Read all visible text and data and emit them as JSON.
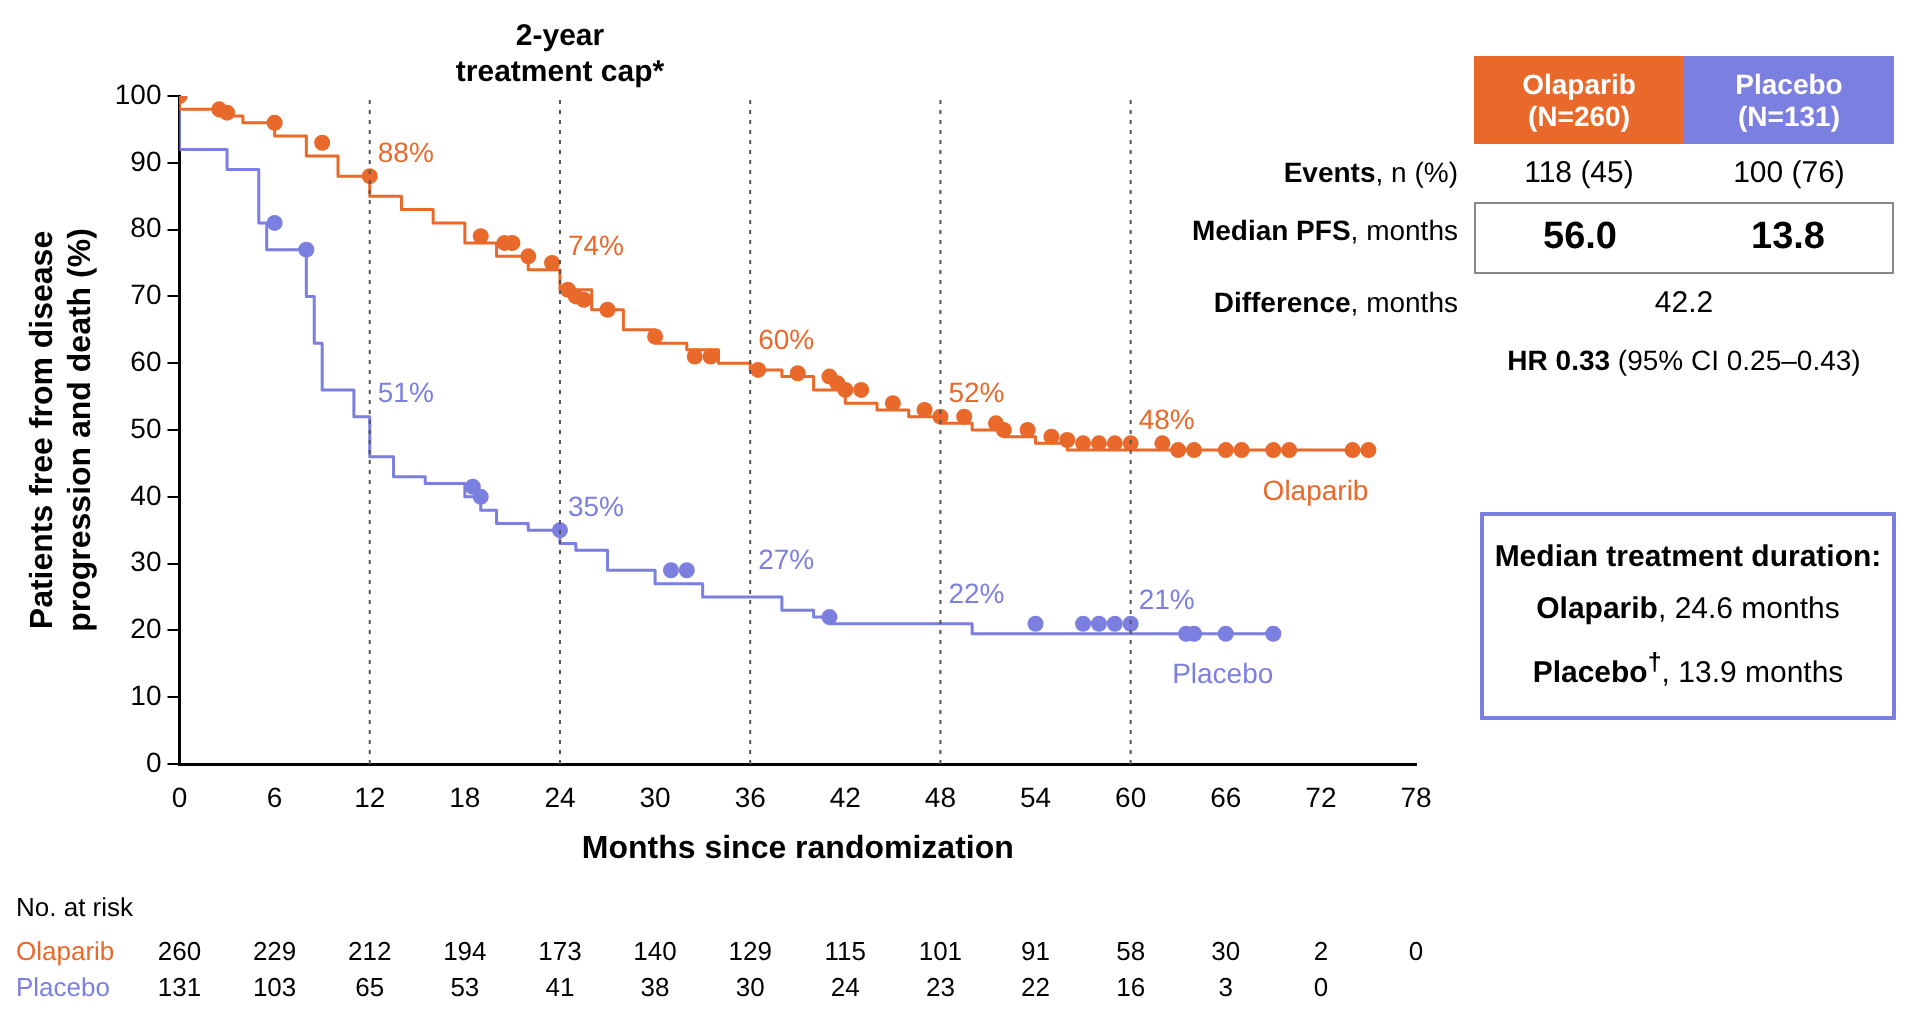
{
  "chart_data": {
    "type": "step",
    "xlabel": "Months since randomization",
    "ylabel": "Patients free from disease progression and death (%)",
    "xlim": [
      0,
      78
    ],
    "xticks": [
      0,
      6,
      12,
      18,
      24,
      30,
      36,
      42,
      48,
      54,
      60,
      66,
      72,
      78
    ],
    "ylim": [
      0,
      100
    ],
    "yticks": [
      0,
      10,
      20,
      30,
      40,
      50,
      60,
      70,
      80,
      90,
      100
    ],
    "grid": false,
    "legend": false,
    "series": [
      {
        "name": "Olaparib",
        "marker": "none",
        "color": "#e8692a",
        "x": [
          0,
          2.5,
          4,
          6,
          8,
          10,
          12,
          14,
          16,
          18,
          20,
          22,
          24,
          26,
          28,
          30,
          32,
          34,
          36,
          38,
          40,
          42,
          44,
          46,
          48,
          50,
          52,
          54,
          56,
          62,
          75
        ],
        "values": [
          100,
          98,
          97,
          96,
          94,
          91,
          88,
          85,
          83,
          81,
          78,
          76,
          74,
          71,
          68,
          65,
          63,
          62,
          60,
          59,
          58,
          56,
          54,
          53,
          52,
          51,
          50,
          49,
          48,
          47,
          47
        ]
      },
      {
        "name": "Placebo",
        "marker": "none",
        "color": "#7b7fe0",
        "x": [
          0,
          3,
          5,
          5.5,
          8,
          8.5,
          9,
          11,
          12,
          13.5,
          15.5,
          18,
          19,
          20,
          22,
          24,
          25,
          27,
          30,
          33,
          38,
          40,
          41,
          50,
          61,
          69
        ],
        "values": [
          100,
          92,
          89,
          81,
          77,
          70,
          63,
          56,
          52,
          46,
          43,
          42,
          40,
          38,
          36,
          35,
          33,
          32,
          29,
          27,
          25,
          23,
          22,
          21,
          19.5,
          19.5
        ]
      },
      {
        "type": "scatter",
        "marker": "circle",
        "color": "#e8692a",
        "x": [
          0,
          2.5,
          3,
          6,
          9,
          12,
          19,
          20.5,
          21,
          22,
          23.5,
          24.5,
          25,
          25.5,
          27,
          30,
          32.5,
          33.5,
          36.5,
          39,
          41,
          41.5,
          42,
          43,
          45,
          47,
          48,
          49.5,
          51.5,
          52,
          53.5,
          55,
          56,
          57,
          58,
          59,
          60,
          62,
          63,
          64,
          66,
          67,
          69,
          70,
          74,
          75
        ],
        "values": [
          100,
          98,
          97.5,
          96,
          93,
          88,
          79,
          78,
          78,
          76,
          75,
          71,
          70,
          69.5,
          68,
          64,
          61,
          61,
          59,
          58.5,
          58,
          57,
          56,
          56,
          54,
          53,
          52,
          52,
          51,
          50,
          50,
          49,
          48.5,
          48,
          48,
          48,
          48,
          48,
          47,
          47,
          47,
          47,
          47,
          47,
          47,
          47
        ]
      },
      {
        "type": "scatter",
        "marker": "circle",
        "color": "#7b7fe0",
        "x": [
          6,
          8,
          18.5,
          19,
          24,
          31,
          32,
          41,
          54,
          57,
          58,
          59,
          60,
          63.5,
          64,
          66,
          69
        ],
        "values": [
          81,
          77,
          41.5,
          40,
          35,
          29,
          29,
          22,
          21,
          21,
          21,
          21,
          21,
          19.5,
          19.5,
          19.5,
          19.5
        ]
      }
    ],
    "ref_lines": [
      {
        "axis": "x",
        "value": 12,
        "line_style": "dotted"
      },
      {
        "axis": "x",
        "value": 24,
        "line_style": "dotted",
        "label": "2-year treatment cap*"
      },
      {
        "axis": "x",
        "value": 36,
        "line_style": "dotted"
      },
      {
        "axis": "x",
        "value": 48,
        "line_style": "dotted"
      },
      {
        "axis": "x",
        "value": 60,
        "line_style": "dotted"
      }
    ],
    "annotations": [
      {
        "text": "88%",
        "x": 12,
        "y": 88
      },
      {
        "text": "74%",
        "x": 24,
        "y": 74
      },
      {
        "text": "60%",
        "x": 36,
        "y": 60
      },
      {
        "text": "52%",
        "x": 48,
        "y": 52
      },
      {
        "text": "48%",
        "x": 60,
        "y": 48
      },
      {
        "text": "51%",
        "x": 12,
        "y": 52
      },
      {
        "text": "35%",
        "x": 24,
        "y": 35
      },
      {
        "text": "27%",
        "x": 36,
        "y": 27
      },
      {
        "text": "22%",
        "x": 48,
        "y": 22
      },
      {
        "text": "21%",
        "x": 60,
        "y": 21
      },
      "Olaparib (N=260)",
      "Placebo (N=131)",
      "Events, n (%)",
      "118 (45)",
      "100 (76)",
      "Median PFS, months",
      "56.0",
      "13.8",
      "Difference, months",
      "42.2",
      "HR 0.33 (95% CI 0.25–0.43)",
      "Median treatment duration:",
      "Olaparib, 24.6 months",
      "Placebo$^{†}$, 13.9 months",
      "No. at risk",
      "Olaparib",
      "260 229 212 194 173 140 129 115 101 91 58 30 2 0",
      "Placebo",
      "131 103 65 53 41 38 30 24 23 22 16 3 0"
    ]
  }
}
